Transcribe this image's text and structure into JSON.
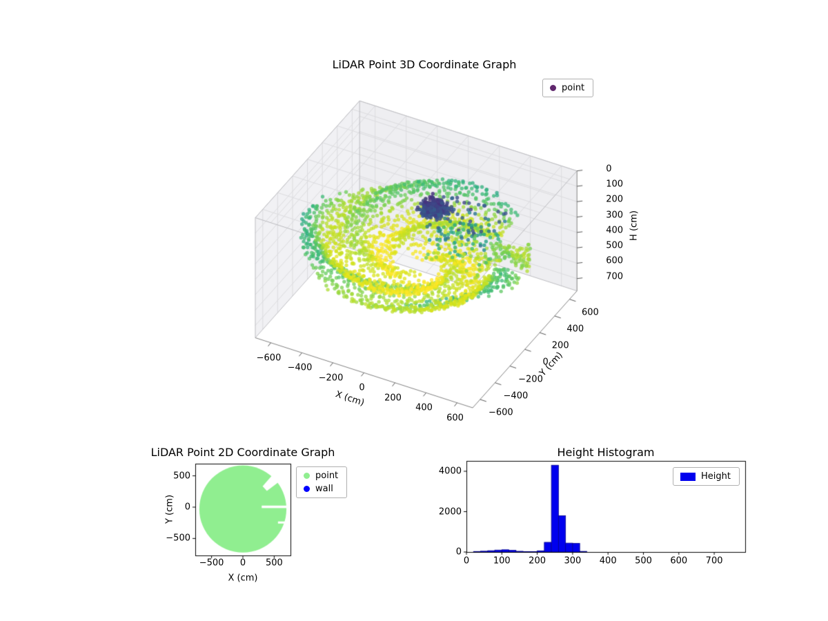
{
  "figure": {
    "background": "#ffffff"
  },
  "chart_data": [
    {
      "id": "lidar_3d",
      "type": "scatter3d",
      "title": "LiDAR Point 3D Coordinate Graph",
      "xlabel": "X (cm)",
      "ylabel": "Y (cm)",
      "zlabel": "H (cm)",
      "xticks": [
        -600,
        -400,
        -200,
        0,
        200,
        400,
        600
      ],
      "yticks": [
        -600,
        -400,
        -200,
        0,
        200,
        400,
        600
      ],
      "zticks": [
        0,
        100,
        200,
        300,
        400,
        500,
        600,
        700
      ],
      "xlim": [
        -700,
        700
      ],
      "ylim": [
        -700,
        700
      ],
      "zlim": [
        0,
        780
      ],
      "zaxis_inverted": true,
      "grid": true,
      "colormap": "viridis",
      "legend": {
        "position": "upper right",
        "entries": [
          {
            "label": "point",
            "marker_color": "#440154"
          }
        ]
      },
      "point_cloud": {
        "description": "Dense LiDAR sweep: ring-textured floor disc (green/yellow), dark low-H cluster near center, sparse mid-height returns to the right; color encodes H (cm) with viridis; radial gaps where the beam escapes.",
        "color_by": "H",
        "color_range": [
          0,
          480
        ],
        "floor_disc": {
          "radius_min": 140,
          "radius_max": 660,
          "rings": 26,
          "h_center": 470,
          "h_rim": 320,
          "h_wave_amp": 45,
          "h_noise": 18,
          "gap_angles_deg": [
            [
              3,
              13
            ],
            [
              36,
              52
            ]
          ],
          "gap_min_radius": 380
        },
        "ceiling_cluster": {
          "center": [
            90,
            60,
            95
          ],
          "spread": [
            120,
            120,
            55
          ],
          "count": 260
        },
        "mid_scatter": {
          "x_range": [
            60,
            460
          ],
          "y_range": [
            -80,
            300
          ],
          "h_range": [
            80,
            420
          ],
          "count": 150
        }
      }
    },
    {
      "id": "lidar_2d",
      "type": "scatter2d",
      "title": "LiDAR Point 2D Coordinate Graph",
      "xlabel": "X (cm)",
      "ylabel": "Y (cm)",
      "xticks": [
        -500,
        0,
        500
      ],
      "yticks": [
        -500,
        0,
        500
      ],
      "xlim": [
        -760,
        760
      ],
      "ylim": [
        -771,
        694
      ],
      "legend": {
        "position": "outside upper right",
        "entries": [
          {
            "label": "point",
            "marker_color": "#90ee90"
          },
          {
            "label": "wall",
            "marker_color": "#0000ff"
          }
        ]
      },
      "series": [
        {
          "name": "point",
          "color": "#90ee90",
          "shape": "filled_disc",
          "center_cm": [
            0,
            -30
          ],
          "radius_cm": 695,
          "notches": [
            {
              "kind": "corridor",
              "y_cm": [
                -15,
                25
              ],
              "x_from_cm": 300
            },
            {
              "kind": "wedge",
              "angle_deg": [
                37,
                49
              ],
              "r_from_cm": 480
            },
            {
              "kind": "corridor",
              "y_cm": [
                -262,
                -228
              ],
              "x_from_cm": 560
            }
          ]
        },
        {
          "name": "wall",
          "color": "#0000ff"
        }
      ]
    },
    {
      "id": "height_histogram",
      "type": "histogram",
      "title": "Height Histogram",
      "bar_color": "#0000ee",
      "bar_edge_color": "#00008b",
      "bin_width": 20,
      "bins": [
        {
          "start": 20,
          "count": 25
        },
        {
          "start": 40,
          "count": 40
        },
        {
          "start": 60,
          "count": 65
        },
        {
          "start": 80,
          "count": 95
        },
        {
          "start": 100,
          "count": 110
        },
        {
          "start": 120,
          "count": 85
        },
        {
          "start": 140,
          "count": 35
        },
        {
          "start": 160,
          "count": 15
        },
        {
          "start": 180,
          "count": 15
        },
        {
          "start": 200,
          "count": 60
        },
        {
          "start": 220,
          "count": 480
        },
        {
          "start": 240,
          "count": 4300
        },
        {
          "start": 260,
          "count": 1800
        },
        {
          "start": 280,
          "count": 440
        },
        {
          "start": 300,
          "count": 430
        },
        {
          "start": 320,
          "count": 30
        }
      ],
      "xticks": [
        0,
        100,
        200,
        300,
        400,
        500,
        600,
        700
      ],
      "yticks": [
        0,
        2000,
        4000
      ],
      "xlim": [
        0,
        787
      ],
      "ylim": [
        0,
        4513
      ],
      "legend": {
        "position": "upper right",
        "entries": [
          {
            "label": "Height",
            "swatch_color": "#0000ee"
          }
        ]
      }
    }
  ]
}
